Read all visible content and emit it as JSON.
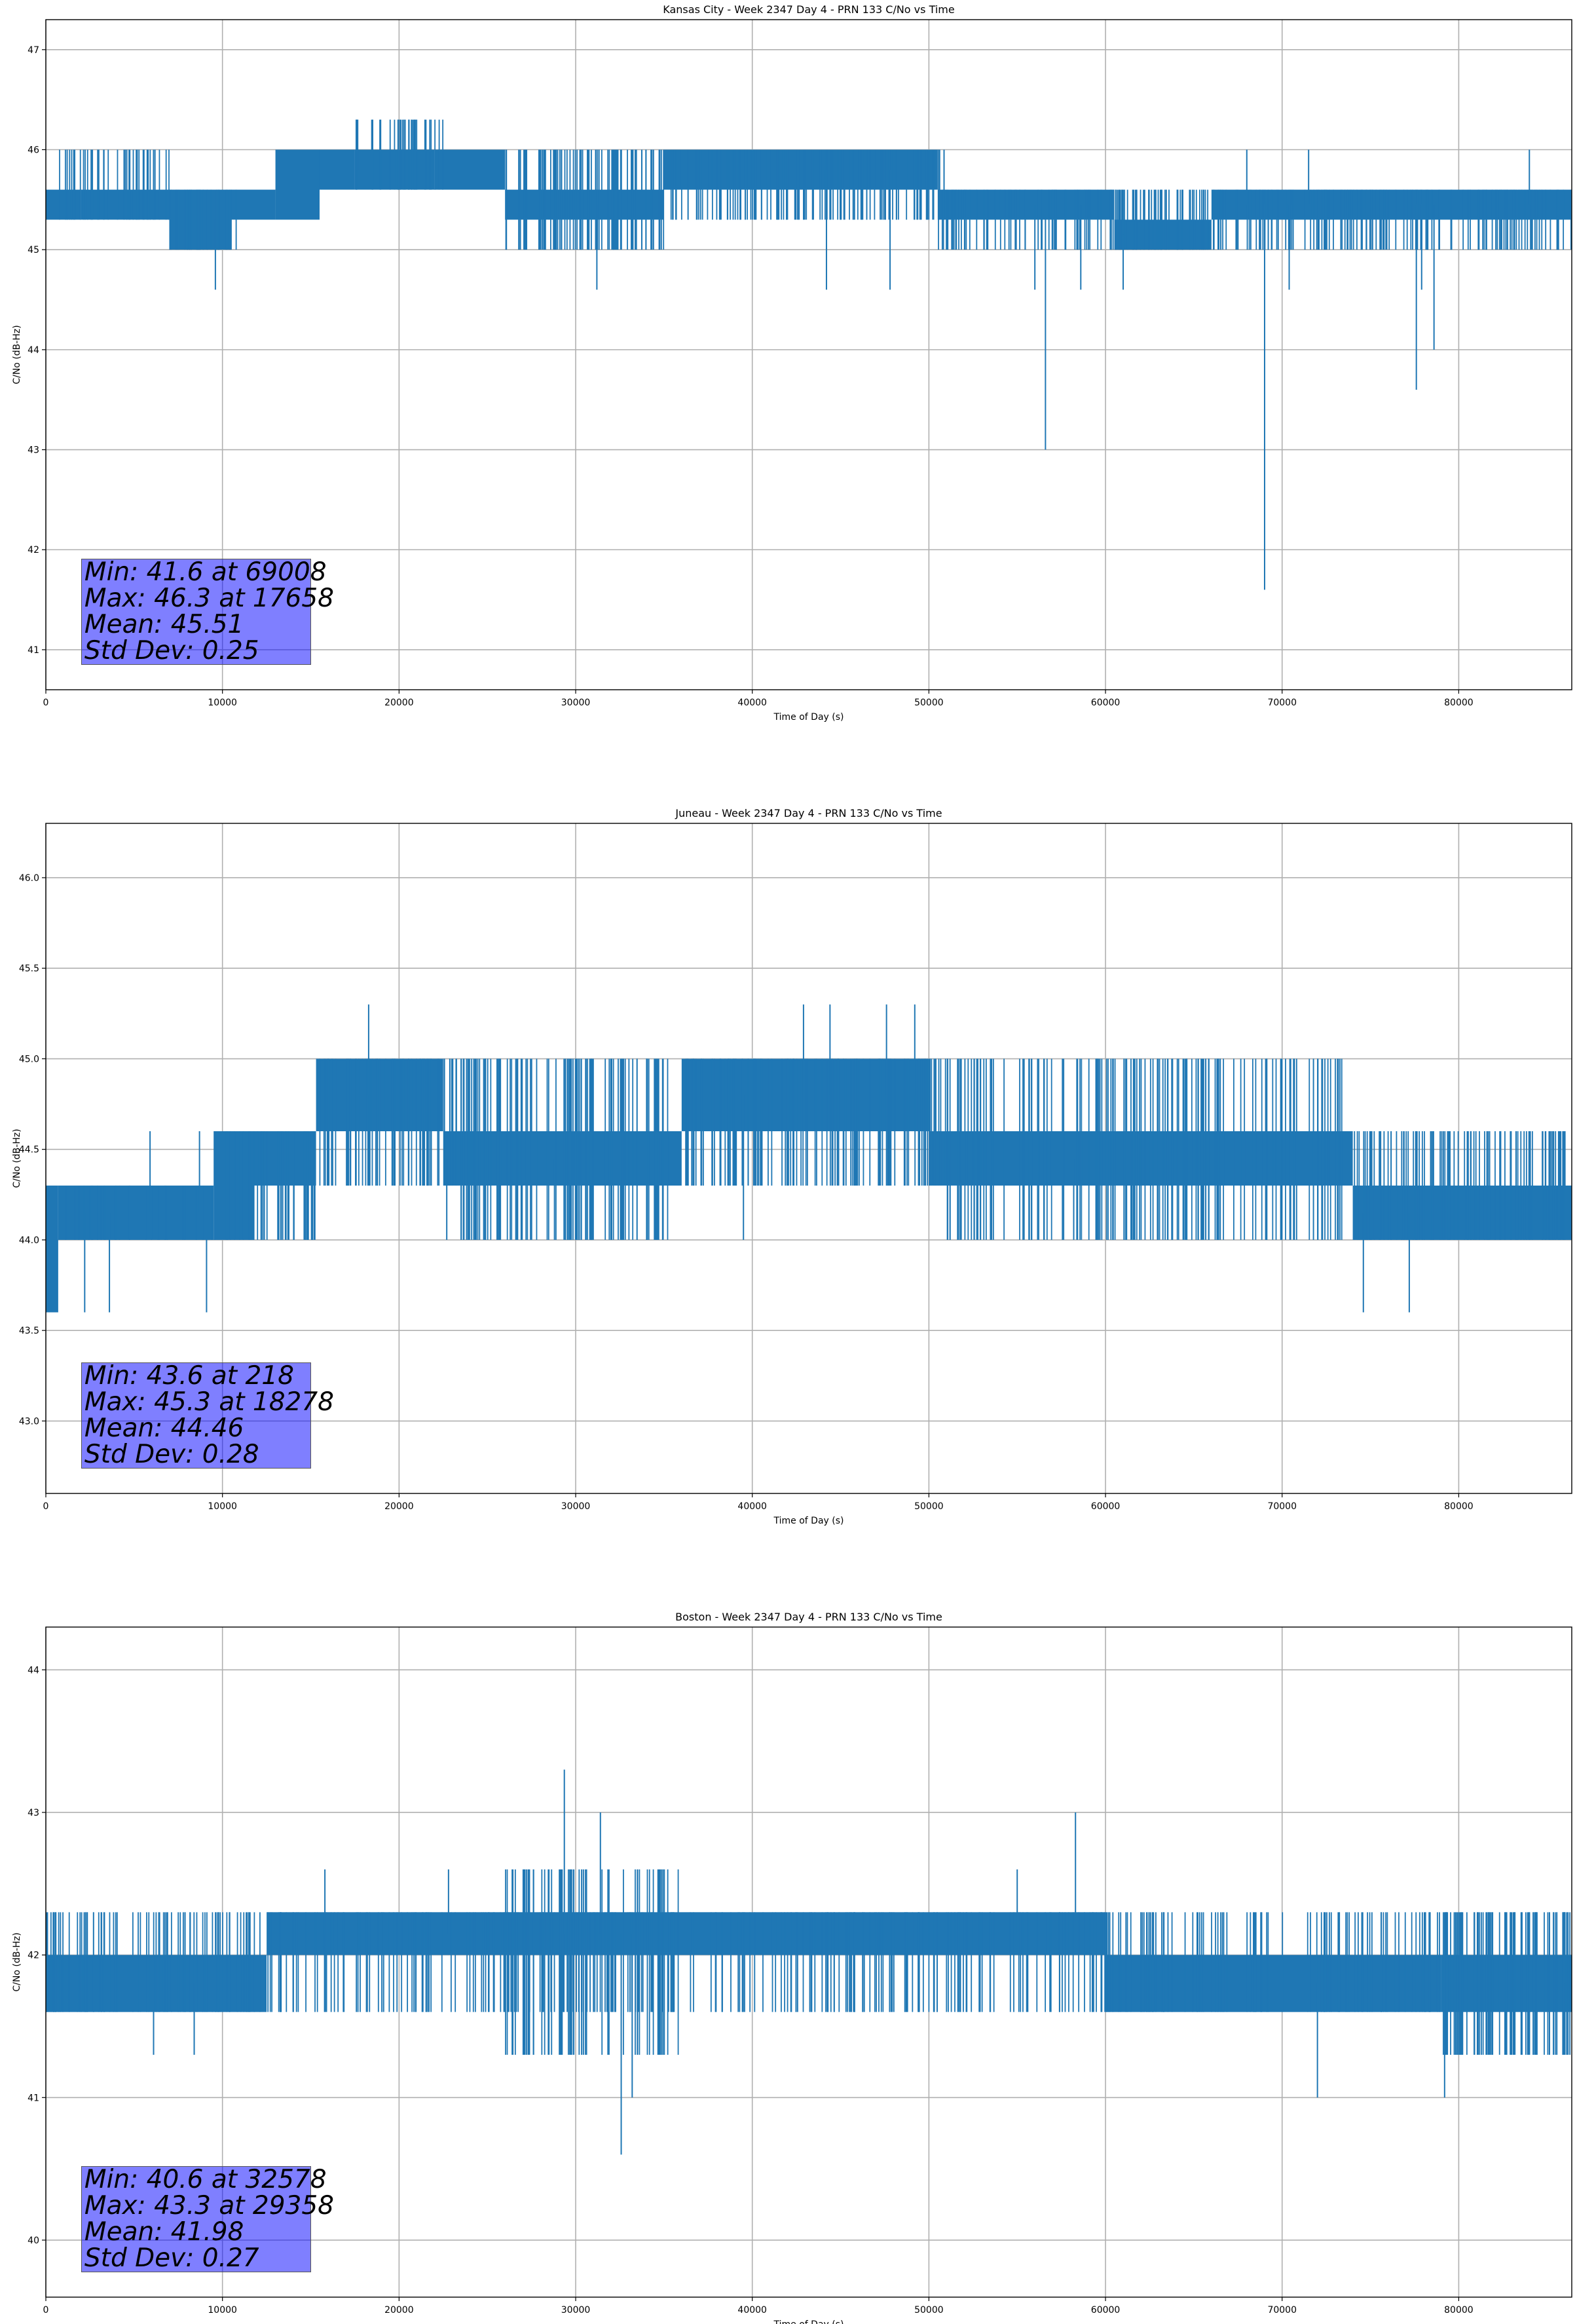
{
  "figure": {
    "line_color": "#1f77b4",
    "grid_color": "#b0b0b0",
    "stats_box_color": "#8080ff"
  },
  "chart_data": [
    {
      "type": "line",
      "title": "Kansas City - Week 2347 Day 4 - PRN 133 C/No vs Time",
      "xlabel": "Time of Day (s)",
      "ylabel": "C/No (dB-Hz)",
      "xlim": [
        0,
        86400
      ],
      "ylim": [
        40.6,
        47.3
      ],
      "xticks": [
        0,
        10000,
        20000,
        30000,
        40000,
        50000,
        60000,
        70000,
        80000
      ],
      "yticks": [
        41,
        42,
        43,
        44,
        45,
        46,
        47
      ],
      "ytick_labels": [
        "41",
        "42",
        "43",
        "44",
        "45",
        "46",
        "47"
      ],
      "grid": true,
      "series": [
        {
          "name": "C/No",
          "segments": [
            {
              "x0": 0,
              "x1": 2000,
              "lo": 45.3,
              "hi": 45.6
            },
            {
              "x0": 2000,
              "x1": 7000,
              "lo": 45.3,
              "hi": 45.6
            },
            {
              "x0": 7000,
              "x1": 10500,
              "lo": 45.0,
              "hi": 45.6
            },
            {
              "x0": 10500,
              "x1": 13000,
              "lo": 45.3,
              "hi": 45.6
            },
            {
              "x0": 13000,
              "x1": 15500,
              "lo": 45.3,
              "hi": 46.0
            },
            {
              "x0": 15500,
              "x1": 17500,
              "lo": 45.6,
              "hi": 46.0
            },
            {
              "x0": 17500,
              "x1": 22000,
              "lo": 45.6,
              "hi": 46.0
            },
            {
              "x0": 22000,
              "x1": 26000,
              "lo": 45.6,
              "hi": 46.0
            },
            {
              "x0": 26000,
              "x1": 35000,
              "lo": 45.3,
              "hi": 45.6
            },
            {
              "x0": 35000,
              "x1": 50500,
              "lo": 45.6,
              "hi": 46.0
            },
            {
              "x0": 50500,
              "x1": 60500,
              "lo": 45.3,
              "hi": 45.6
            },
            {
              "x0": 60500,
              "x1": 66000,
              "lo": 45.0,
              "hi": 45.3
            },
            {
              "x0": 66000,
              "x1": 86400,
              "lo": 45.3,
              "hi": 45.6
            }
          ],
          "noise": [
            {
              "x0": 0,
              "x1": 7000,
              "lo": 45.3,
              "hi": 46.0,
              "n": 40
            },
            {
              "x0": 7000,
              "x1": 11000,
              "lo": 45.0,
              "hi": 45.6,
              "n": 30
            },
            {
              "x0": 17500,
              "x1": 22500,
              "lo": 45.6,
              "hi": 46.3,
              "n": 30
            },
            {
              "x0": 26000,
              "x1": 35000,
              "lo": 45.0,
              "hi": 46.0,
              "n": 90
            },
            {
              "x0": 35000,
              "x1": 51000,
              "lo": 45.3,
              "hi": 46.0,
              "n": 120
            },
            {
              "x0": 50500,
              "x1": 60500,
              "lo": 45.0,
              "hi": 45.6,
              "n": 60
            },
            {
              "x0": 60500,
              "x1": 66000,
              "lo": 45.0,
              "hi": 45.6,
              "n": 50
            },
            {
              "x0": 66000,
              "x1": 86400,
              "lo": 45.0,
              "hi": 45.6,
              "n": 140
            }
          ],
          "spikes": [
            {
              "x": 69008,
              "y": 41.6
            },
            {
              "x": 56600,
              "y": 43.0
            },
            {
              "x": 77600,
              "y": 43.6
            },
            {
              "x": 78600,
              "y": 44.0
            },
            {
              "x": 9600,
              "y": 44.6
            },
            {
              "x": 31200,
              "y": 44.6
            },
            {
              "x": 44200,
              "y": 44.6
            },
            {
              "x": 47800,
              "y": 44.6
            },
            {
              "x": 56000,
              "y": 44.6
            },
            {
              "x": 58600,
              "y": 44.6
            },
            {
              "x": 61000,
              "y": 44.6
            },
            {
              "x": 70400,
              "y": 44.6
            },
            {
              "x": 77900,
              "y": 44.6
            },
            {
              "x": 17658,
              "y": 46.3
            },
            {
              "x": 4500,
              "y": 46.0
            },
            {
              "x": 71500,
              "y": 46.0
            },
            {
              "x": 84000,
              "y": 46.0
            },
            {
              "x": 68000,
              "y": 46.0
            }
          ]
        }
      ],
      "stats": {
        "min": "Min: 41.6 at 69008",
        "max": "Max: 46.3 at 17658",
        "mean": "Mean: 45.51",
        "std": "Std Dev: 0.25"
      }
    },
    {
      "type": "line",
      "title": "Juneau - Week 2347 Day 4 - PRN 133 C/No vs Time",
      "xlabel": "Time of Day (s)",
      "ylabel": "C/No (dB-Hz)",
      "xlim": [
        0,
        86400
      ],
      "ylim": [
        42.6,
        46.3
      ],
      "xticks": [
        0,
        10000,
        20000,
        30000,
        40000,
        50000,
        60000,
        70000,
        80000
      ],
      "yticks": [
        43.0,
        43.5,
        44.0,
        44.5,
        45.0,
        45.5,
        46.0
      ],
      "ytick_labels": [
        "43.0",
        "43.5",
        "44.0",
        "44.5",
        "45.0",
        "45.5",
        "46.0"
      ],
      "grid": true,
      "series": [
        {
          "name": "C/No",
          "segments": [
            {
              "x0": 0,
              "x1": 700,
              "lo": 43.6,
              "hi": 44.3
            },
            {
              "x0": 700,
              "x1": 9500,
              "lo": 44.0,
              "hi": 44.3
            },
            {
              "x0": 9500,
              "x1": 11800,
              "lo": 44.0,
              "hi": 44.6
            },
            {
              "x0": 11800,
              "x1": 15300,
              "lo": 44.3,
              "hi": 44.6
            },
            {
              "x0": 15300,
              "x1": 22500,
              "lo": 44.6,
              "hi": 45.0
            },
            {
              "x0": 22500,
              "x1": 36000,
              "lo": 44.3,
              "hi": 44.6
            },
            {
              "x0": 36000,
              "x1": 50000,
              "lo": 44.6,
              "hi": 45.0
            },
            {
              "x0": 50000,
              "x1": 74000,
              "lo": 44.3,
              "hi": 44.6
            },
            {
              "x0": 74000,
              "x1": 86400,
              "lo": 44.0,
              "hi": 44.3
            }
          ],
          "noise": [
            {
              "x0": 0,
              "x1": 9500,
              "lo": 44.0,
              "hi": 44.3,
              "n": 30
            },
            {
              "x0": 9500,
              "x1": 15300,
              "lo": 44.0,
              "hi": 44.6,
              "n": 40
            },
            {
              "x0": 15300,
              "x1": 23500,
              "lo": 44.3,
              "hi": 45.0,
              "n": 60
            },
            {
              "x0": 23500,
              "x1": 36000,
              "lo": 44.0,
              "hi": 45.0,
              "n": 110
            },
            {
              "x0": 36000,
              "x1": 51000,
              "lo": 44.3,
              "hi": 45.0,
              "n": 120
            },
            {
              "x0": 51000,
              "x1": 74000,
              "lo": 44.0,
              "hi": 45.0,
              "n": 150
            },
            {
              "x0": 74000,
              "x1": 86400,
              "lo": 44.0,
              "hi": 44.6,
              "n": 100
            }
          ],
          "spikes": [
            {
              "x": 218,
              "y": 43.6
            },
            {
              "x": 2200,
              "y": 43.6
            },
            {
              "x": 3600,
              "y": 43.6
            },
            {
              "x": 9100,
              "y": 43.6
            },
            {
              "x": 74600,
              "y": 43.6
            },
            {
              "x": 77200,
              "y": 43.6
            },
            {
              "x": 18278,
              "y": 45.3
            },
            {
              "x": 42900,
              "y": 45.3
            },
            {
              "x": 44400,
              "y": 45.3
            },
            {
              "x": 47600,
              "y": 45.3
            },
            {
              "x": 49200,
              "y": 45.3
            },
            {
              "x": 5900,
              "y": 44.6
            },
            {
              "x": 8700,
              "y": 44.6
            },
            {
              "x": 22700,
              "y": 44.0
            },
            {
              "x": 28800,
              "y": 44.0
            },
            {
              "x": 39500,
              "y": 44.0
            },
            {
              "x": 51200,
              "y": 44.0
            },
            {
              "x": 58200,
              "y": 44.0
            },
            {
              "x": 61500,
              "y": 44.0
            }
          ]
        }
      ],
      "stats": {
        "min": "Min: 43.6 at 218",
        "max": "Max: 45.3 at 18278",
        "mean": "Mean: 44.46",
        "std": "Std Dev: 0.28"
      }
    },
    {
      "type": "line",
      "title": "Boston - Week 2347 Day 4 - PRN 133 C/No vs Time",
      "xlabel": "Time of Day (s)",
      "ylabel": "C/No (dB-Hz)",
      "xlim": [
        0,
        86400
      ],
      "ylim": [
        39.6,
        44.3
      ],
      "xticks": [
        0,
        10000,
        20000,
        30000,
        40000,
        50000,
        60000,
        70000,
        80000
      ],
      "yticks": [
        40,
        41,
        42,
        43,
        44
      ],
      "ytick_labels": [
        "40",
        "41",
        "42",
        "43",
        "44"
      ],
      "grid": true,
      "series": [
        {
          "name": "C/No",
          "segments": [
            {
              "x0": 0,
              "x1": 12500,
              "lo": 41.6,
              "hi": 42.0
            },
            {
              "x0": 12500,
              "x1": 60000,
              "lo": 42.0,
              "hi": 42.3
            },
            {
              "x0": 60000,
              "x1": 79000,
              "lo": 41.6,
              "hi": 42.0
            },
            {
              "x0": 79000,
              "x1": 86400,
              "lo": 41.6,
              "hi": 42.0
            }
          ],
          "noise": [
            {
              "x0": 0,
              "x1": 12500,
              "lo": 41.6,
              "hi": 42.3,
              "n": 80
            },
            {
              "x0": 12500,
              "x1": 60000,
              "lo": 41.6,
              "hi": 42.3,
              "n": 260
            },
            {
              "x0": 26000,
              "x1": 36000,
              "lo": 41.3,
              "hi": 42.6,
              "n": 60
            },
            {
              "x0": 60000,
              "x1": 79000,
              "lo": 41.6,
              "hi": 42.3,
              "n": 100
            },
            {
              "x0": 79000,
              "x1": 86400,
              "lo": 41.3,
              "hi": 42.3,
              "n": 90
            }
          ],
          "spikes": [
            {
              "x": 32578,
              "y": 40.6
            },
            {
              "x": 29358,
              "y": 43.3
            },
            {
              "x": 31400,
              "y": 43.0
            },
            {
              "x": 58300,
              "y": 43.0
            },
            {
              "x": 33200,
              "y": 41.0
            },
            {
              "x": 72000,
              "y": 41.0
            },
            {
              "x": 79200,
              "y": 41.0
            },
            {
              "x": 6100,
              "y": 41.3
            },
            {
              "x": 8400,
              "y": 41.3
            },
            {
              "x": 15800,
              "y": 42.6
            },
            {
              "x": 22800,
              "y": 42.6
            },
            {
              "x": 55000,
              "y": 42.6
            },
            {
              "x": 86000,
              "y": 42.3
            }
          ]
        }
      ],
      "stats": {
        "min": "Min: 40.6 at 32578",
        "max": "Max: 43.3 at 29358",
        "mean": "Mean: 41.98",
        "std": "Std Dev: 0.27"
      }
    }
  ]
}
